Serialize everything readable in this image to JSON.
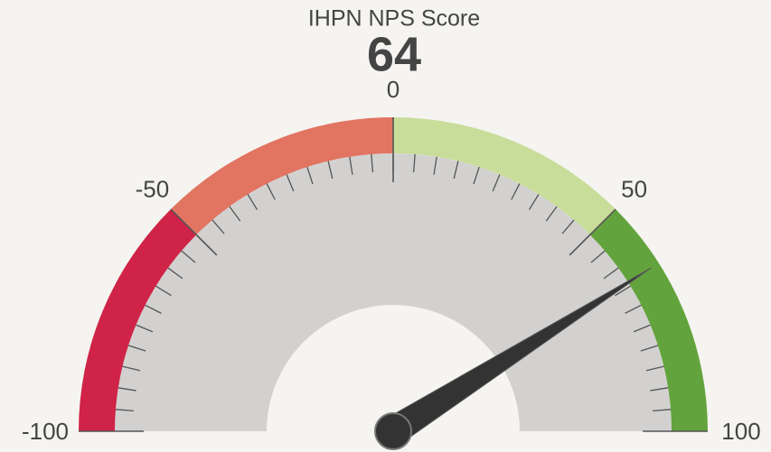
{
  "chart_data": {
    "type": "gauge",
    "title": "IHPN NPS Score",
    "value": 64,
    "value_color": "#5ea43e",
    "ylim": [
      -100,
      100
    ],
    "yticks": [
      -100,
      -50,
      0,
      50,
      100
    ],
    "bands": [
      {
        "from": -100,
        "to": -50,
        "color": "#cf2447"
      },
      {
        "from": -50,
        "to": 0,
        "color": "#e27462"
      },
      {
        "from": 0,
        "to": 50,
        "color": "#c8dd9a"
      },
      {
        "from": 50,
        "to": 100,
        "color": "#63a33d"
      }
    ]
  }
}
